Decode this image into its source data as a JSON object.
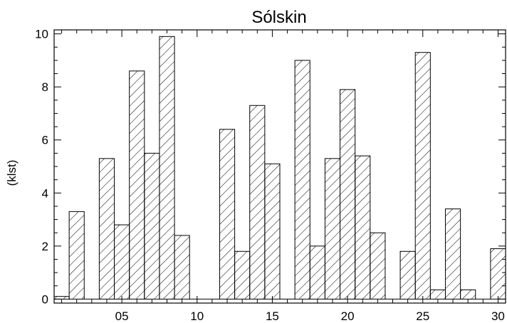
{
  "chart_data": {
    "type": "bar",
    "title": "Sólskin",
    "xlabel": "",
    "ylabel": "(klst)",
    "xlim": [
      0.5,
      30.5
    ],
    "ylim": [
      -0.15,
      10.15
    ],
    "x": [
      1,
      2,
      3,
      4,
      5,
      6,
      7,
      8,
      9,
      10,
      11,
      12,
      13,
      14,
      15,
      16,
      17,
      18,
      19,
      20,
      21,
      22,
      23,
      24,
      25,
      26,
      27,
      28,
      29,
      30
    ],
    "values": [
      0.1,
      3.3,
      0.0,
      5.3,
      2.8,
      8.6,
      5.5,
      9.9,
      2.4,
      0.0,
      0.0,
      6.4,
      1.8,
      7.3,
      5.1,
      0.0,
      9.0,
      2.0,
      5.3,
      7.9,
      5.4,
      2.5,
      0.0,
      1.8,
      9.3,
      0.35,
      3.4,
      0.35,
      0.0,
      1.9
    ],
    "x_ticks": [
      {
        "value": 5,
        "label": "05"
      },
      {
        "value": 10,
        "label": "10"
      },
      {
        "value": 15,
        "label": "15"
      },
      {
        "value": 20,
        "label": "20"
      },
      {
        "value": 25,
        "label": "25"
      },
      {
        "value": 30,
        "label": "30"
      }
    ],
    "y_ticks": [
      {
        "value": 0,
        "label": "0"
      },
      {
        "value": 2,
        "label": "2"
      },
      {
        "value": 4,
        "label": "4"
      },
      {
        "value": 6,
        "label": "6"
      },
      {
        "value": 8,
        "label": "8"
      },
      {
        "value": 10,
        "label": "10"
      }
    ],
    "fill_pattern": "diagonal-hatch",
    "bar_color": "#000000",
    "grid": false,
    "legend": "none"
  }
}
